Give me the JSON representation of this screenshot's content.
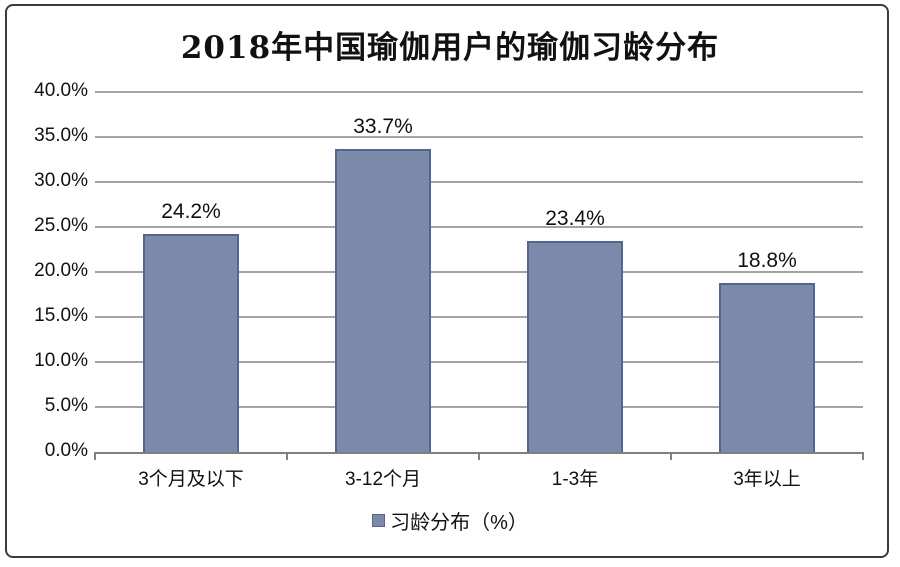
{
  "chart_data": {
    "type": "bar",
    "title": "2018年中国瑜伽用户的瑜伽习龄分布",
    "categories": [
      "3个月及以下",
      "3-12个月",
      "1-3年",
      "3年以上"
    ],
    "values": [
      24.2,
      33.7,
      23.4,
      18.8
    ],
    "value_labels": [
      "24.2%",
      "33.7%",
      "23.4%",
      "18.8%"
    ],
    "series_name": "习龄分布（%）",
    "xlabel": "",
    "ylabel": "",
    "ylim": [
      0,
      40
    ],
    "ytick_step": 5,
    "ytick_labels": [
      "0.0%",
      "5.0%",
      "10.0%",
      "15.0%",
      "20.0%",
      "25.0%",
      "30.0%",
      "35.0%",
      "40.0%"
    ],
    "grid": true,
    "legend_position": "bottom",
    "bar_color": "#7b8aab",
    "bar_border_color": "#55658e",
    "gridline_color": "#a3a3a3",
    "axis_color": "#7f7f7f",
    "frame_border_color": "#3b3b3b",
    "text_color": "#111111",
    "bar_width_fraction": 0.5
  }
}
